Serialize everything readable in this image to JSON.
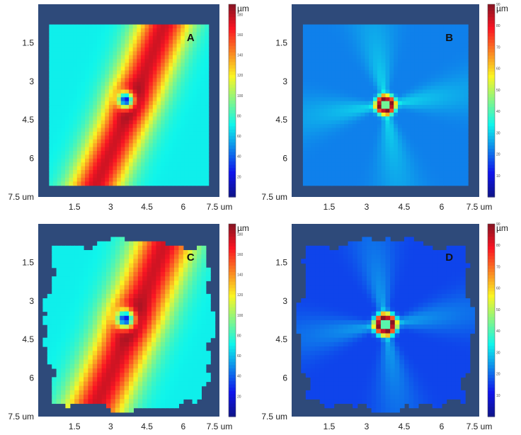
{
  "chart_data": [
    {
      "type": "heatmap",
      "panel_label": "A",
      "colorbar_unit": "µm",
      "colorbar_ticks": [
        "20",
        "40",
        "60",
        "80",
        "100",
        "120",
        "140",
        "160",
        "180"
      ],
      "colorbar_range": [
        0,
        190
      ],
      "x_ticks": [
        "1.5",
        "3",
        "4.5",
        "6",
        "7.5 um"
      ],
      "y_ticks": [
        "1.5",
        "3",
        "4.5",
        "6",
        "7.5 um"
      ],
      "axis_range": [
        0,
        7.5
      ],
      "pattern": "band",
      "field_shape": "square",
      "values": {
        "background": 70,
        "ridge_peak": 175,
        "crater_min": 20
      }
    },
    {
      "type": "heatmap",
      "panel_label": "B",
      "colorbar_unit": "µm",
      "colorbar_ticks": [
        "10",
        "20",
        "30",
        "40",
        "50",
        "60",
        "70",
        "80",
        "90"
      ],
      "colorbar_range": [
        0,
        90
      ],
      "x_ticks": [
        "1.5",
        "3",
        "4.5",
        "6",
        "7.5 um"
      ],
      "y_ticks": [
        "1.5",
        "3",
        "4.5",
        "6",
        "7.5 um"
      ],
      "axis_range": [
        0,
        7.5
      ],
      "pattern": "ring",
      "field_shape": "square",
      "values": {
        "background": 22,
        "ray_peak": 33,
        "ring_peak": 85
      }
    },
    {
      "type": "heatmap",
      "panel_label": "C",
      "colorbar_unit": "µm",
      "colorbar_ticks": [
        "20",
        "40",
        "60",
        "80",
        "100",
        "120",
        "140",
        "160",
        "180"
      ],
      "colorbar_range": [
        0,
        190
      ],
      "x_ticks": [
        "1.5",
        "3",
        "4.5",
        "6",
        "7.5 um"
      ],
      "y_ticks": [
        "1.5",
        "3",
        "4.5",
        "6",
        "7.5 um"
      ],
      "axis_range": [
        0,
        7.5
      ],
      "pattern": "band",
      "field_shape": "warped",
      "values": {
        "background": 70,
        "ridge_peak": 175,
        "crater_min": 20
      }
    },
    {
      "type": "heatmap",
      "panel_label": "D",
      "colorbar_unit": "µm",
      "colorbar_ticks": [
        "10",
        "20",
        "30",
        "40",
        "50",
        "60",
        "70",
        "80",
        "90"
      ],
      "colorbar_range": [
        0,
        90
      ],
      "x_ticks": [
        "1.5",
        "3",
        "4.5",
        "6",
        "7.5 um"
      ],
      "y_ticks": [
        "1.5",
        "3",
        "4.5",
        "6",
        "7.5 um"
      ],
      "axis_range": [
        0,
        7.5
      ],
      "pattern": "ring",
      "field_shape": "warped",
      "values": {
        "background": 16,
        "ray_peak": 28,
        "ring_peak": 85
      }
    }
  ]
}
